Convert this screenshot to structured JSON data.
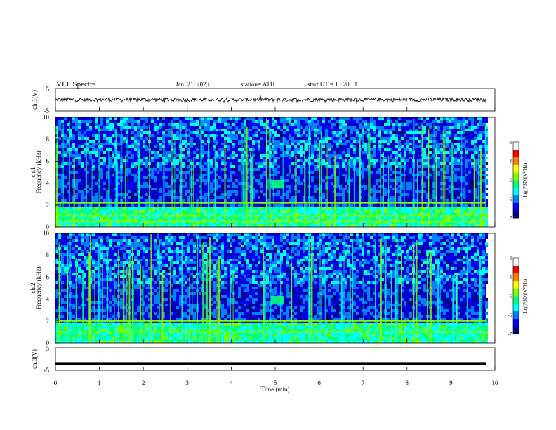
{
  "header": {
    "title": "VLF  Spectra",
    "date": "Jan. 21, 2023",
    "station": "station= ATH",
    "start": "start  UT  =   1  : 20 : 1"
  },
  "colors": {
    "colormap": [
      "#000080",
      "#0000ff",
      "#0080ff",
      "#00ffff",
      "#00ff80",
      "#80ff00",
      "#ffff00",
      "#ff8000",
      "#ff0000",
      "#ffffff"
    ]
  },
  "chart_data": [
    {
      "type": "line",
      "panel": "ch1-waveform",
      "ylabel": "ch.1(V)",
      "ylim": [
        -5,
        5
      ],
      "yticks": [
        "5",
        "-5"
      ],
      "xlim": [
        0,
        10
      ],
      "baseline": 0,
      "amplitude": 1.1
    },
    {
      "type": "heatmap",
      "panel": "ch1-spectrogram",
      "ylabel_channel": "ch.1",
      "ylabel": "Frequency  (kHz)",
      "ylim": [
        0,
        10
      ],
      "yticks": [
        "0",
        "2",
        "4",
        "6",
        "8",
        "10"
      ],
      "xlim": [
        0,
        10
      ],
      "colorbar": {
        "label": "log(PSD)(V²/Hz)",
        "range": [
          -7,
          -3
        ],
        "ticks": [
          "-3",
          "-4",
          "-5",
          "-6",
          "-7"
        ]
      },
      "features": [
        {
          "kind": "emission-blob",
          "t_min": [
            4.9,
            5.2
          ],
          "f_khz": [
            3.5,
            4.3
          ]
        },
        {
          "kind": "tone",
          "f_khz": 2.2
        },
        {
          "kind": "tone",
          "f_khz": 1.0
        },
        {
          "kind": "tone",
          "f_khz": 0.5
        }
      ]
    },
    {
      "type": "heatmap",
      "panel": "ch2-spectrogram",
      "ylabel_channel": "ch.2",
      "ylabel": "Frequency  (kHz)",
      "ylim": [
        0,
        10
      ],
      "yticks": [
        "0",
        "2",
        "4",
        "6",
        "8",
        "10"
      ],
      "xlim": [
        0,
        10
      ],
      "colorbar": {
        "label": "log(PSD)(V²/Hz)",
        "range": [
          -7,
          -3
        ],
        "ticks": [
          "-3",
          "-4",
          "-5",
          "-6",
          "-7"
        ]
      },
      "features": [
        {
          "kind": "emission-blob",
          "t_min": [
            4.9,
            5.2
          ],
          "f_khz": [
            3.5,
            4.3
          ]
        },
        {
          "kind": "tone",
          "f_khz": 2.0
        },
        {
          "kind": "tone",
          "f_khz": 1.0
        }
      ]
    },
    {
      "type": "line",
      "panel": "ch3-waveform",
      "ylabel": "ch.3(V)",
      "ylim": [
        -5,
        5
      ],
      "yticks": [
        "5",
        "-5"
      ],
      "xlim": [
        0,
        10
      ],
      "baseline": -2,
      "amplitude": 0
    }
  ],
  "xaxis": {
    "label": "Time  (min)",
    "ticks": [
      "0",
      "1",
      "2",
      "3",
      "4",
      "5",
      "6",
      "7",
      "8",
      "9",
      "10"
    ],
    "range": [
      0,
      10
    ]
  }
}
